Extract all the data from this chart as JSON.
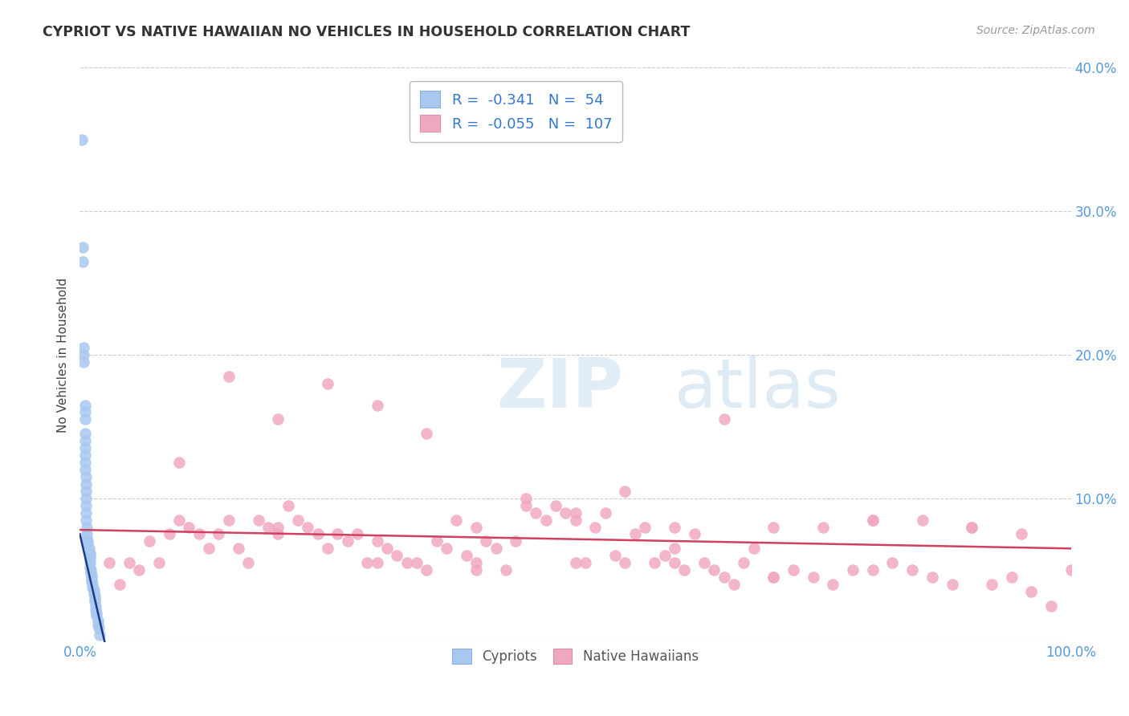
{
  "title": "CYPRIOT VS NATIVE HAWAIIAN NO VEHICLES IN HOUSEHOLD CORRELATION CHART",
  "source": "Source: ZipAtlas.com",
  "ylabel": "No Vehicles in Household",
  "xlim": [
    0,
    100
  ],
  "ylim": [
    0,
    40
  ],
  "cypriot_color": "#a8c8f0",
  "native_hawaiian_color": "#f0a8c0",
  "cypriot_line_color": "#1a3a8c",
  "native_hawaiian_line_color": "#d04060",
  "background_color": "#ffffff",
  "grid_color": "#cccccc",
  "cypriot_x": [
    0.2,
    0.3,
    0.3,
    0.4,
    0.4,
    0.4,
    0.5,
    0.5,
    0.5,
    0.5,
    0.5,
    0.5,
    0.5,
    0.5,
    0.5,
    0.6,
    0.6,
    0.6,
    0.6,
    0.6,
    0.6,
    0.6,
    0.7,
    0.7,
    0.7,
    0.8,
    0.8,
    0.9,
    1.0,
    1.0,
    1.0,
    1.0,
    1.0,
    1.1,
    1.1,
    1.2,
    1.2,
    1.2,
    1.2,
    1.3,
    1.3,
    1.4,
    1.4,
    1.5,
    1.5,
    1.5,
    1.6,
    1.6,
    1.7,
    1.7,
    1.8,
    1.8,
    1.9,
    2.0
  ],
  "cypriot_y": [
    35.0,
    27.5,
    26.5,
    20.5,
    20.0,
    19.5,
    16.5,
    16.0,
    15.5,
    14.5,
    14.0,
    13.5,
    13.0,
    12.5,
    12.0,
    11.5,
    11.0,
    10.5,
    10.0,
    9.5,
    9.0,
    8.5,
    8.0,
    7.5,
    7.2,
    7.0,
    6.8,
    6.5,
    6.2,
    6.0,
    5.8,
    5.5,
    5.2,
    5.0,
    4.8,
    4.6,
    4.5,
    4.3,
    4.2,
    4.0,
    3.8,
    3.6,
    3.4,
    3.2,
    3.0,
    2.8,
    2.5,
    2.2,
    2.0,
    1.8,
    1.5,
    1.2,
    1.0,
    0.5
  ],
  "native_hawaiian_x": [
    3,
    4,
    5,
    6,
    7,
    8,
    9,
    10,
    11,
    12,
    13,
    14,
    15,
    16,
    17,
    18,
    19,
    20,
    21,
    22,
    23,
    24,
    25,
    26,
    27,
    28,
    29,
    30,
    31,
    32,
    33,
    34,
    35,
    36,
    37,
    38,
    39,
    40,
    41,
    42,
    43,
    44,
    45,
    46,
    47,
    48,
    49,
    50,
    51,
    52,
    53,
    54,
    55,
    56,
    57,
    58,
    59,
    60,
    61,
    62,
    63,
    64,
    65,
    66,
    67,
    68,
    70,
    72,
    74,
    76,
    78,
    80,
    82,
    84,
    86,
    88,
    90,
    92,
    94,
    96,
    98,
    100,
    10,
    20,
    30,
    40,
    50,
    60,
    70,
    80,
    90,
    15,
    25,
    35,
    45,
    55,
    65,
    75,
    85,
    95,
    20,
    30,
    40,
    50,
    60,
    70,
    80
  ],
  "native_hawaiian_y": [
    5.5,
    4.0,
    5.5,
    5.0,
    7.0,
    5.5,
    7.5,
    8.5,
    8.0,
    7.5,
    6.5,
    7.5,
    8.5,
    6.5,
    5.5,
    8.5,
    8.0,
    8.0,
    9.5,
    8.5,
    8.0,
    7.5,
    6.5,
    7.5,
    7.0,
    7.5,
    5.5,
    7.0,
    6.5,
    6.0,
    5.5,
    5.5,
    5.0,
    7.0,
    6.5,
    8.5,
    6.0,
    5.5,
    7.0,
    6.5,
    5.0,
    7.0,
    9.5,
    9.0,
    8.5,
    9.5,
    9.0,
    8.5,
    5.5,
    8.0,
    9.0,
    6.0,
    5.5,
    7.5,
    8.0,
    5.5,
    6.0,
    8.0,
    5.0,
    7.5,
    5.5,
    5.0,
    4.5,
    4.0,
    5.5,
    6.5,
    8.0,
    5.0,
    4.5,
    4.0,
    5.0,
    8.5,
    5.5,
    5.0,
    4.5,
    4.0,
    8.0,
    4.0,
    4.5,
    3.5,
    2.5,
    5.0,
    12.5,
    15.5,
    16.5,
    8.0,
    9.0,
    5.5,
    4.5,
    8.5,
    8.0,
    18.5,
    18.0,
    14.5,
    10.0,
    10.5,
    15.5,
    8.0,
    8.5,
    7.5,
    7.5,
    5.5,
    5.0,
    5.5,
    6.5,
    4.5,
    5.0
  ],
  "watermark_zip": "ZIP",
  "watermark_atlas": "atlas"
}
